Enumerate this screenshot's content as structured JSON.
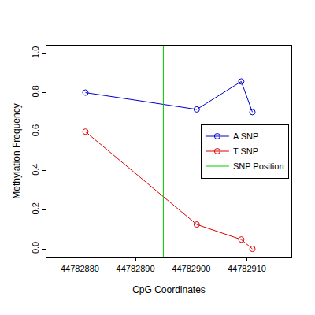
{
  "chart_data": {
    "type": "line",
    "x_label": "CpG Coordinates",
    "y_label": "Methylation Frequency",
    "series": [
      {
        "name": "A SNP",
        "color": "#0000cc",
        "marker": "circle-open",
        "x": [
          44782881,
          44782901,
          44782909,
          44782911
        ],
        "values": [
          0.8,
          0.714,
          0.857,
          0.7
        ]
      },
      {
        "name": "T SNP",
        "color": "#dd0000",
        "marker": "circle-open",
        "x": [
          44782881,
          44782901,
          44782909,
          44782911
        ],
        "values": [
          0.6,
          0.125,
          0.048,
          0.0
        ]
      }
    ],
    "snp_position": {
      "name": "SNP Position",
      "color": "#00cc00",
      "x": 44782895
    },
    "xlim": [
      44782874,
      44782918
    ],
    "xticks": [
      44782880,
      44782890,
      44782900,
      44782910
    ],
    "ylim": [
      -0.04,
      1.04
    ],
    "yticks": [
      {
        "value": 0,
        "label": "0.0"
      },
      0.2,
      0.4,
      0.6,
      0.8,
      {
        "value": 1,
        "label": "1.0"
      }
    ],
    "legend": "right",
    "grid": false
  }
}
